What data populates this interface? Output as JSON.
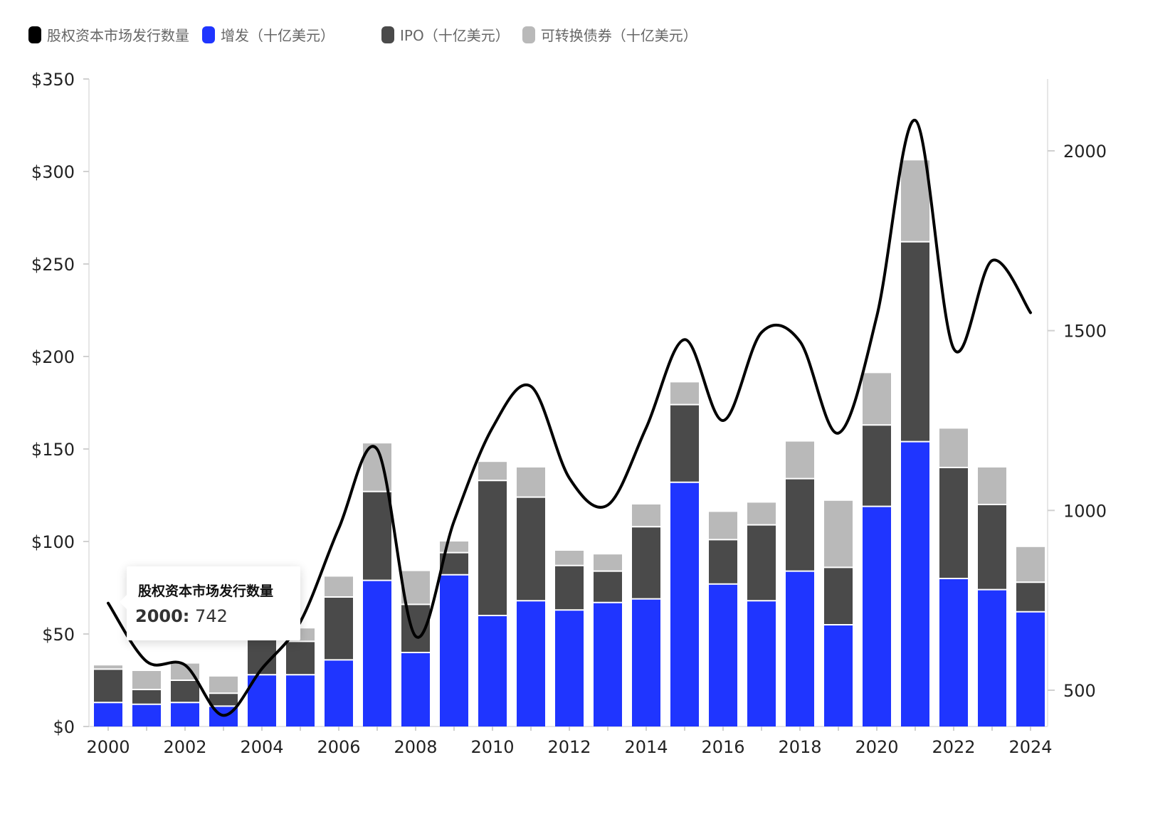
{
  "legend": [
    {
      "label": "股权资本市场发行数量",
      "color": "#000000"
    },
    {
      "label": "增发（十亿美元）",
      "color": "#1f35ff"
    },
    {
      "label": "IPO（十亿美元）",
      "color": "#4a4a4a"
    },
    {
      "label": "可转换债券（十亿美元）",
      "color": "#b9b9b9"
    }
  ],
  "tooltip": {
    "title": "股权资本市场发行数量",
    "key": "2000:",
    "value": "742"
  },
  "chart_data": {
    "type": "bar",
    "stacked": true,
    "categories": [
      "2000",
      "2001",
      "2002",
      "2003",
      "2004",
      "2005",
      "2006",
      "2007",
      "2008",
      "2009",
      "2010",
      "2011",
      "2012",
      "2013",
      "2014",
      "2015",
      "2016",
      "2017",
      "2018",
      "2019",
      "2020",
      "2021",
      "2022",
      "2023",
      "2024"
    ],
    "x_tick_labels": [
      "2000",
      "2002",
      "2004",
      "2006",
      "2008",
      "2010",
      "2012",
      "2014",
      "2016",
      "2018",
      "2020",
      "2022",
      "2024"
    ],
    "y_left": {
      "ticks": [
        "$0",
        "$50",
        "$100",
        "$150",
        "$200",
        "$250",
        "$300",
        "$350"
      ],
      "ylim": [
        0,
        350
      ]
    },
    "y_right": {
      "ticks": [
        "500",
        "1000",
        "1500",
        "2000"
      ],
      "ylim": [
        400,
        2200
      ]
    },
    "series": [
      {
        "name": "增发（十亿美元）",
        "color": "#1f35ff",
        "values": [
          13,
          12,
          13,
          11,
          28,
          28,
          36,
          79,
          40,
          82,
          60,
          68,
          63,
          67,
          69,
          132,
          77,
          68,
          84,
          55,
          119,
          154,
          80,
          74,
          62
        ]
      },
      {
        "name": "IPO（十亿美元）",
        "color": "#4a4a4a",
        "values": [
          18,
          8,
          12,
          7,
          27,
          18,
          34,
          48,
          26,
          12,
          73,
          56,
          24,
          17,
          39,
          42,
          24,
          41,
          50,
          31,
          44,
          108,
          60,
          46,
          16
        ]
      },
      {
        "name": "可转换债券（十亿美元）",
        "color": "#b9b9b9",
        "values": [
          2,
          10,
          9,
          9,
          8,
          7,
          11,
          26,
          18,
          6,
          10,
          16,
          8,
          9,
          12,
          12,
          15,
          12,
          20,
          36,
          28,
          44,
          21,
          20,
          19
        ]
      },
      {
        "name": "股权资本市场发行数量",
        "color": "#000000",
        "type": "line",
        "axis": "right",
        "values": [
          742,
          580,
          570,
          430,
          560,
          690,
          950,
          1170,
          650,
          970,
          1230,
          1345,
          1090,
          1015,
          1230,
          1475,
          1250,
          1495,
          1470,
          1215,
          1540,
          2085,
          1450,
          1695,
          1550
        ]
      }
    ]
  }
}
